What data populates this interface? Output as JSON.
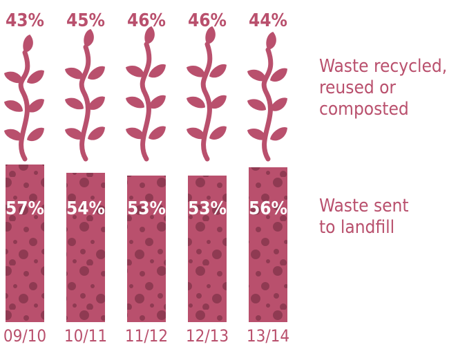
{
  "chart_data": {
    "type": "bar",
    "categories": [
      "09/10",
      "10/11",
      "11/12",
      "12/13",
      "13/14"
    ],
    "series": [
      {
        "name": "Waste recycled, reused or composted",
        "values": [
          43,
          45,
          46,
          46,
          44
        ]
      },
      {
        "name": "Waste sent to landfill",
        "values": [
          57,
          54,
          53,
          53,
          56
        ]
      }
    ],
    "value_labels_top": [
      "43%",
      "45%",
      "46%",
      "46%",
      "44%"
    ],
    "value_labels_bottom": [
      "57%",
      "54%",
      "53%",
      "53%",
      "56%"
    ],
    "legend": {
      "recycled_lines": [
        "Waste recycled,",
        "reused or",
        "composted"
      ],
      "landfill_lines": [
        "Waste sent",
        "to landfill"
      ]
    },
    "colors": {
      "main": "#b9506d",
      "dots": "#8f3a52"
    }
  }
}
